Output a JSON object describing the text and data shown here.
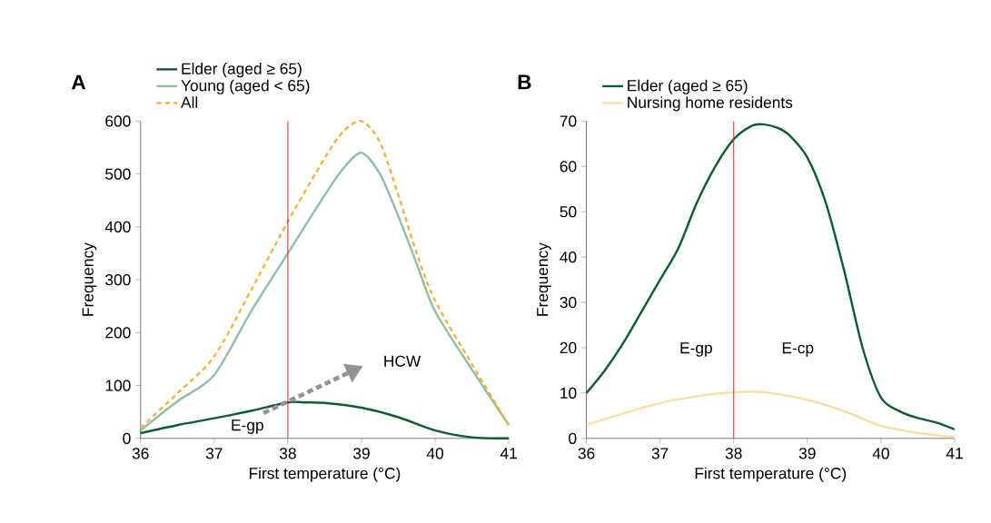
{
  "chart_data": [
    {
      "type": "line",
      "title": "A",
      "xlabel": "First temperature (°C)",
      "ylabel": "Frequency",
      "xlim": [
        36,
        41
      ],
      "xticks": [
        36,
        37,
        38,
        39,
        40,
        41
      ],
      "ylim": [
        0,
        600
      ],
      "yticks": [
        0,
        100,
        200,
        300,
        400,
        500,
        600
      ],
      "legend": "top left",
      "series": [
        {
          "name": "Elder (aged ≥ 65)",
          "color": "#0b5e2e",
          "x": [
            36,
            36.5,
            37,
            37.5,
            38,
            38.25,
            38.5,
            39,
            39.5,
            40,
            40.5,
            41
          ],
          "values": [
            10,
            25,
            38,
            52,
            68,
            68,
            67,
            58,
            40,
            15,
            2,
            0
          ]
        },
        {
          "name": "Young (aged < 65)",
          "color": "#8fbfa6",
          "x": [
            36,
            36.5,
            37,
            37.5,
            38,
            38.5,
            38.75,
            39,
            39.25,
            39.5,
            39.75,
            40,
            40.5,
            41
          ],
          "values": [
            15,
            70,
            120,
            240,
            350,
            460,
            510,
            540,
            500,
            420,
            330,
            240,
            130,
            25
          ]
        },
        {
          "name": "All",
          "color": "#f7b23b",
          "line_style": "dashed",
          "x": [
            36,
            36.5,
            37,
            37.5,
            38,
            38.5,
            38.75,
            39,
            39.25,
            39.5,
            39.75,
            40,
            40.5,
            41
          ],
          "values": [
            20,
            85,
            155,
            280,
            410,
            530,
            580,
            600,
            560,
            460,
            350,
            260,
            140,
            25
          ]
        }
      ],
      "ref_lines": [
        {
          "axis": "x",
          "value": 38,
          "color": "#e8302e"
        }
      ],
      "annotations": [
        "E-gp",
        "HCW"
      ]
    },
    {
      "type": "line",
      "title": "B",
      "xlabel": "First temperature (°C)",
      "ylabel": "Frequency",
      "xlim": [
        36,
        41
      ],
      "xticks": [
        36,
        37,
        38,
        39,
        40,
        41
      ],
      "ylim": [
        0,
        70
      ],
      "yticks": [
        0,
        10,
        20,
        30,
        40,
        50,
        60,
        70
      ],
      "legend": "top left",
      "series": [
        {
          "name": "Elder (aged ≥ 65)",
          "color": "#0b5e2e",
          "x": [
            36,
            36.25,
            36.5,
            36.75,
            37,
            37.25,
            37.5,
            37.75,
            38,
            38.25,
            38.4,
            38.6,
            38.75,
            39,
            39.25,
            39.5,
            39.75,
            40,
            40.25,
            40.5,
            40.75,
            41
          ],
          "values": [
            10,
            15,
            21,
            28,
            35,
            42,
            52,
            60,
            66,
            69,
            69.3,
            68.5,
            67,
            62,
            52,
            37,
            20,
            9,
            6,
            4.5,
            3.5,
            2
          ]
        },
        {
          "name": "Nursing home residents",
          "color": "#fddc9e",
          "x": [
            36,
            36.5,
            37,
            37.5,
            38,
            38.25,
            38.5,
            39,
            39.5,
            40,
            40.5,
            41
          ],
          "values": [
            3,
            5.5,
            7.8,
            9.3,
            10.2,
            10.3,
            10,
            8.5,
            6,
            2.8,
            1.2,
            0.3
          ]
        }
      ],
      "ref_lines": [
        {
          "axis": "x",
          "value": 38,
          "color": "#e8302e"
        }
      ],
      "annotations": [
        "E-gp",
        "E-cp"
      ]
    }
  ]
}
